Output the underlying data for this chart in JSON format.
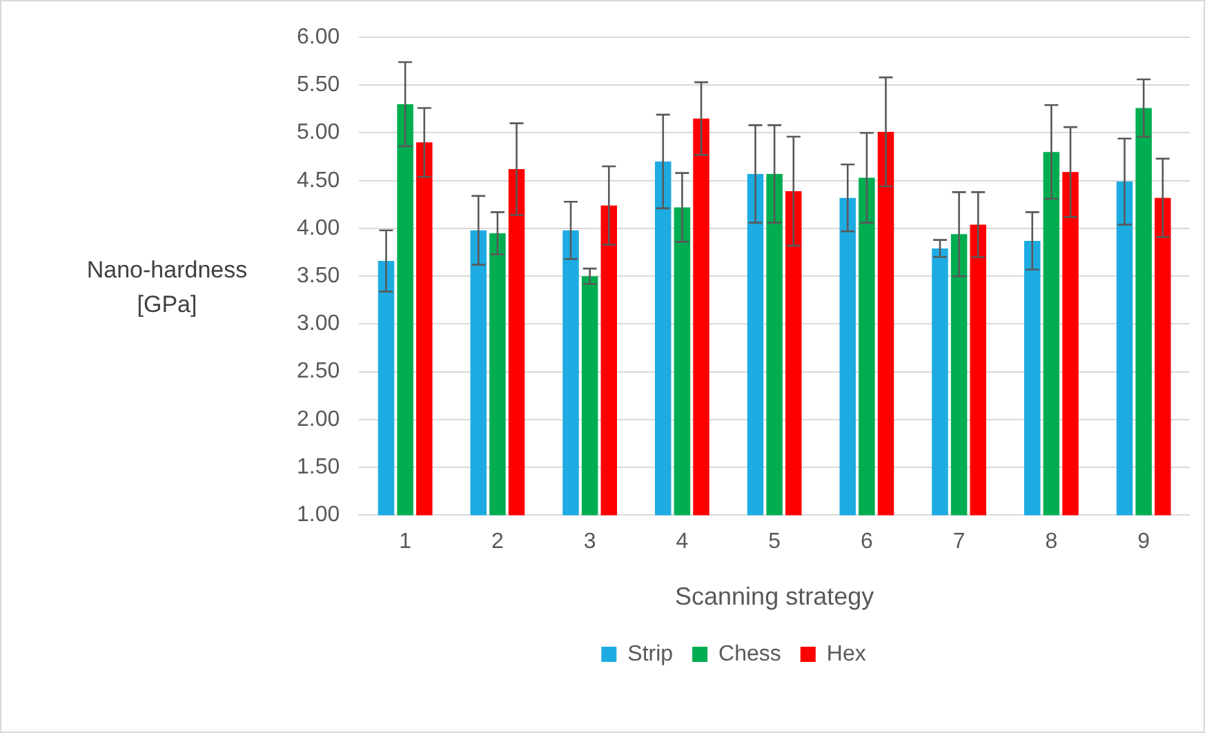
{
  "chart_data": {
    "type": "bar",
    "xlabel": "Scanning strategy",
    "ylabel": "Nano-hardness\n[GPa]",
    "categories": [
      "1",
      "2",
      "3",
      "4",
      "5",
      "6",
      "7",
      "8",
      "9"
    ],
    "series": [
      {
        "name": "Strip",
        "color": "#1eabe2",
        "values": [
          3.66,
          3.98,
          3.98,
          4.7,
          4.57,
          4.32,
          3.79,
          3.87,
          4.49
        ],
        "errors": [
          0.32,
          0.36,
          0.3,
          0.49,
          0.51,
          0.35,
          0.09,
          0.3,
          0.45
        ]
      },
      {
        "name": "Chess",
        "color": "#00ad50",
        "values": [
          5.3,
          3.95,
          3.5,
          4.22,
          4.57,
          4.53,
          3.94,
          4.8,
          5.26
        ],
        "errors": [
          0.44,
          0.22,
          0.08,
          0.36,
          0.51,
          0.47,
          0.44,
          0.49,
          0.3
        ]
      },
      {
        "name": "Hex",
        "color": "#ff0000",
        "values": [
          4.9,
          4.62,
          4.24,
          5.15,
          4.39,
          5.01,
          4.04,
          4.59,
          4.32
        ],
        "errors": [
          0.36,
          0.48,
          0.41,
          0.38,
          0.57,
          0.57,
          0.34,
          0.47,
          0.41
        ]
      }
    ],
    "ylim": [
      1,
      6
    ],
    "yticks": [
      {
        "value": 1,
        "label": "1.00"
      },
      {
        "value": 1.5,
        "label": "1.50"
      },
      {
        "value": 2,
        "label": "2.00"
      },
      {
        "value": 2.5,
        "label": "2.50"
      },
      {
        "value": 3,
        "label": "3.00"
      },
      {
        "value": 3.5,
        "label": "3.50"
      },
      {
        "value": 4,
        "label": "4.00"
      },
      {
        "value": 4.5,
        "label": "4.50"
      },
      {
        "value": 5,
        "label": "5.00"
      },
      {
        "value": 5.5,
        "label": "5.50"
      },
      {
        "value": 6,
        "label": "6.00"
      }
    ],
    "grid": "y",
    "legend": "bottom"
  }
}
